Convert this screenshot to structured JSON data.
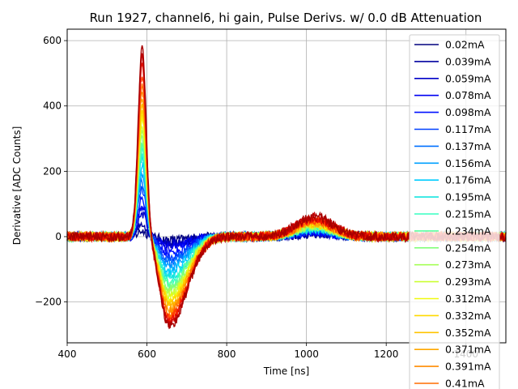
{
  "chart_data": {
    "type": "line",
    "title": "Run 1927, channel6, hi gain, Pulse Derivs. w/ 0.0 dB Attenuation",
    "xlabel": "Time [ns]",
    "ylabel": "Derivative [ADC Counts]",
    "xlim": [
      400,
      1500
    ],
    "ylim": [
      -325,
      635
    ],
    "xticks": [
      400,
      600,
      800,
      1000,
      1200,
      1400
    ],
    "yticks": [
      -200,
      0,
      200,
      400,
      600
    ],
    "grid": true,
    "legend_position": "right",
    "colormap": "jet",
    "series": [
      {
        "name": "0.02mA",
        "color": "#00007f",
        "peak": 18,
        "trough": -10,
        "bump": 8
      },
      {
        "name": "0.039mA",
        "color": "#00009f",
        "peak": 40,
        "trough": -18,
        "bump": 10
      },
      {
        "name": "0.059mA",
        "color": "#0000c8",
        "peak": 70,
        "trough": -25,
        "bump": 12
      },
      {
        "name": "0.078mA",
        "color": "#0000f1",
        "peak": 95,
        "trough": -35,
        "bump": 14
      },
      {
        "name": "0.098mA",
        "color": "#0010ff",
        "peak": 120,
        "trough": -50,
        "bump": 16
      },
      {
        "name": "0.117mA",
        "color": "#0040ff",
        "peak": 145,
        "trough": -65,
        "bump": 18
      },
      {
        "name": "0.137mA",
        "color": "#0070ff",
        "peak": 170,
        "trough": -80,
        "bump": 20
      },
      {
        "name": "0.156mA",
        "color": "#00a0ff",
        "peak": 195,
        "trough": -95,
        "bump": 22
      },
      {
        "name": "0.176mA",
        "color": "#00ccff",
        "peak": 220,
        "trough": -110,
        "bump": 24
      },
      {
        "name": "0.195mA",
        "color": "#16e5e0",
        "peak": 245,
        "trough": -125,
        "bump": 26
      },
      {
        "name": "0.215mA",
        "color": "#36ffc1",
        "peak": 265,
        "trough": -140,
        "bump": 28
      },
      {
        "name": "0.234mA",
        "color": "#5dffa0",
        "peak": 285,
        "trough": -150,
        "bump": 30
      },
      {
        "name": "0.254mA",
        "color": "#82ff7b",
        "peak": 305,
        "trough": -160,
        "bump": 32
      },
      {
        "name": "0.273mA",
        "color": "#a6ff57",
        "peak": 325,
        "trough": -170,
        "bump": 34
      },
      {
        "name": "0.293mA",
        "color": "#cbff33",
        "peak": 345,
        "trough": -180,
        "bump": 36
      },
      {
        "name": "0.312mA",
        "color": "#f0f90f",
        "peak": 365,
        "trough": -190,
        "bump": 38
      },
      {
        "name": "0.332mA",
        "color": "#ffda00",
        "peak": 385,
        "trough": -200,
        "bump": 40
      },
      {
        "name": "0.352mA",
        "color": "#ffc400",
        "peak": 405,
        "trough": -210,
        "bump": 42
      },
      {
        "name": "0.371mA",
        "color": "#ffa800",
        "peak": 430,
        "trough": -220,
        "bump": 44
      },
      {
        "name": "0.391mA",
        "color": "#ff8c00",
        "peak": 450,
        "trough": -230,
        "bump": 46
      },
      {
        "name": "0.41mA",
        "color": "#ff6d00",
        "peak": 475,
        "trough": -240,
        "bump": 48
      },
      {
        "name": "",
        "color": "#ff3f00",
        "peak": 500,
        "trough": -250,
        "bump": 50
      },
      {
        "name": "",
        "color": "#ef0f00",
        "peak": 525,
        "trough": -260,
        "bump": 55
      },
      {
        "name": "",
        "color": "#c70000",
        "peak": 560,
        "trough": -268,
        "bump": 60
      },
      {
        "name": "",
        "color": "#a80000",
        "peak": 585,
        "trough": -275,
        "bump": 62
      }
    ]
  }
}
